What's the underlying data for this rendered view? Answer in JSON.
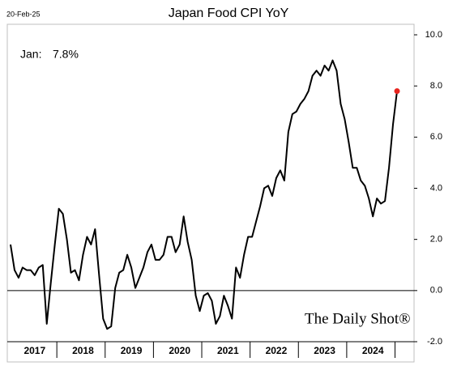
{
  "chart_data": {
    "type": "line",
    "title": "Japan Food CPI YoY",
    "date": "20-Feb-25",
    "annotation_label": "Jan:",
    "annotation_value": "7.8%",
    "brand": "The Daily Shot®",
    "categories": [
      null,
      null,
      null,
      null,
      null,
      null,
      "2017",
      null,
      null,
      null,
      null,
      null,
      null,
      null,
      null,
      null,
      null,
      null,
      "2018",
      null,
      null,
      null,
      null,
      null,
      null,
      null,
      null,
      null,
      null,
      null,
      "2019",
      null,
      null,
      null,
      null,
      null,
      null,
      null,
      null,
      null,
      null,
      null,
      "2020",
      null,
      null,
      null,
      null,
      null,
      null,
      null,
      null,
      null,
      null,
      null,
      "2021",
      null,
      null,
      null,
      null,
      null,
      null,
      null,
      null,
      null,
      null,
      null,
      "2022",
      null,
      null,
      null,
      null,
      null,
      null,
      null,
      null,
      null,
      null,
      null,
      "2023",
      null,
      null,
      null,
      null,
      null,
      null,
      null,
      null,
      null,
      null,
      null,
      "2024",
      null,
      null,
      null,
      null,
      null,
      null
    ],
    "series": [
      {
        "name": "Japan Food CPI YoY",
        "color": "#000000",
        "highlight_color": "#e8251f",
        "values": [
          1.8,
          0.8,
          0.5,
          0.9,
          0.8,
          0.8,
          0.6,
          0.9,
          1.0,
          -1.3,
          0.3,
          1.8,
          3.2,
          3.0,
          2.0,
          0.7,
          0.8,
          0.4,
          1.4,
          2.1,
          1.8,
          2.4,
          0.6,
          -1.1,
          -1.5,
          -1.4,
          0.1,
          0.7,
          0.8,
          1.4,
          0.9,
          0.1,
          0.5,
          0.9,
          1.5,
          1.8,
          1.2,
          1.2,
          1.4,
          2.1,
          2.1,
          1.5,
          1.8,
          2.9,
          1.9,
          1.2,
          -0.2,
          -0.8,
          -0.2,
          -0.1,
          -0.4,
          -1.3,
          -1.0,
          -0.2,
          -0.6,
          -1.1,
          0.9,
          0.5,
          1.4,
          2.1,
          2.1,
          2.7,
          3.3,
          4.0,
          4.1,
          3.7,
          4.4,
          4.7,
          4.3,
          6.2,
          6.9,
          7.0,
          7.3,
          7.5,
          7.8,
          8.4,
          8.6,
          8.4,
          8.8,
          8.6,
          9.0,
          8.6,
          7.3,
          6.7,
          5.8,
          4.8,
          4.8,
          4.3,
          4.1,
          3.6,
          2.9,
          3.6,
          3.4,
          3.5,
          4.8,
          6.5,
          7.8
        ]
      }
    ],
    "ylim": [
      -2,
      10
    ],
    "yticks": [
      {
        "value": -2,
        "label": "-2.0"
      },
      {
        "value": 0,
        "label": "0.0"
      },
      {
        "value": 2,
        "label": "2.0"
      },
      {
        "value": 4,
        "label": "4.0"
      },
      {
        "value": 6,
        "label": "6.0"
      },
      {
        "value": 8,
        "label": "8.0"
      },
      {
        "value": 10,
        "label": "10.0"
      }
    ]
  }
}
